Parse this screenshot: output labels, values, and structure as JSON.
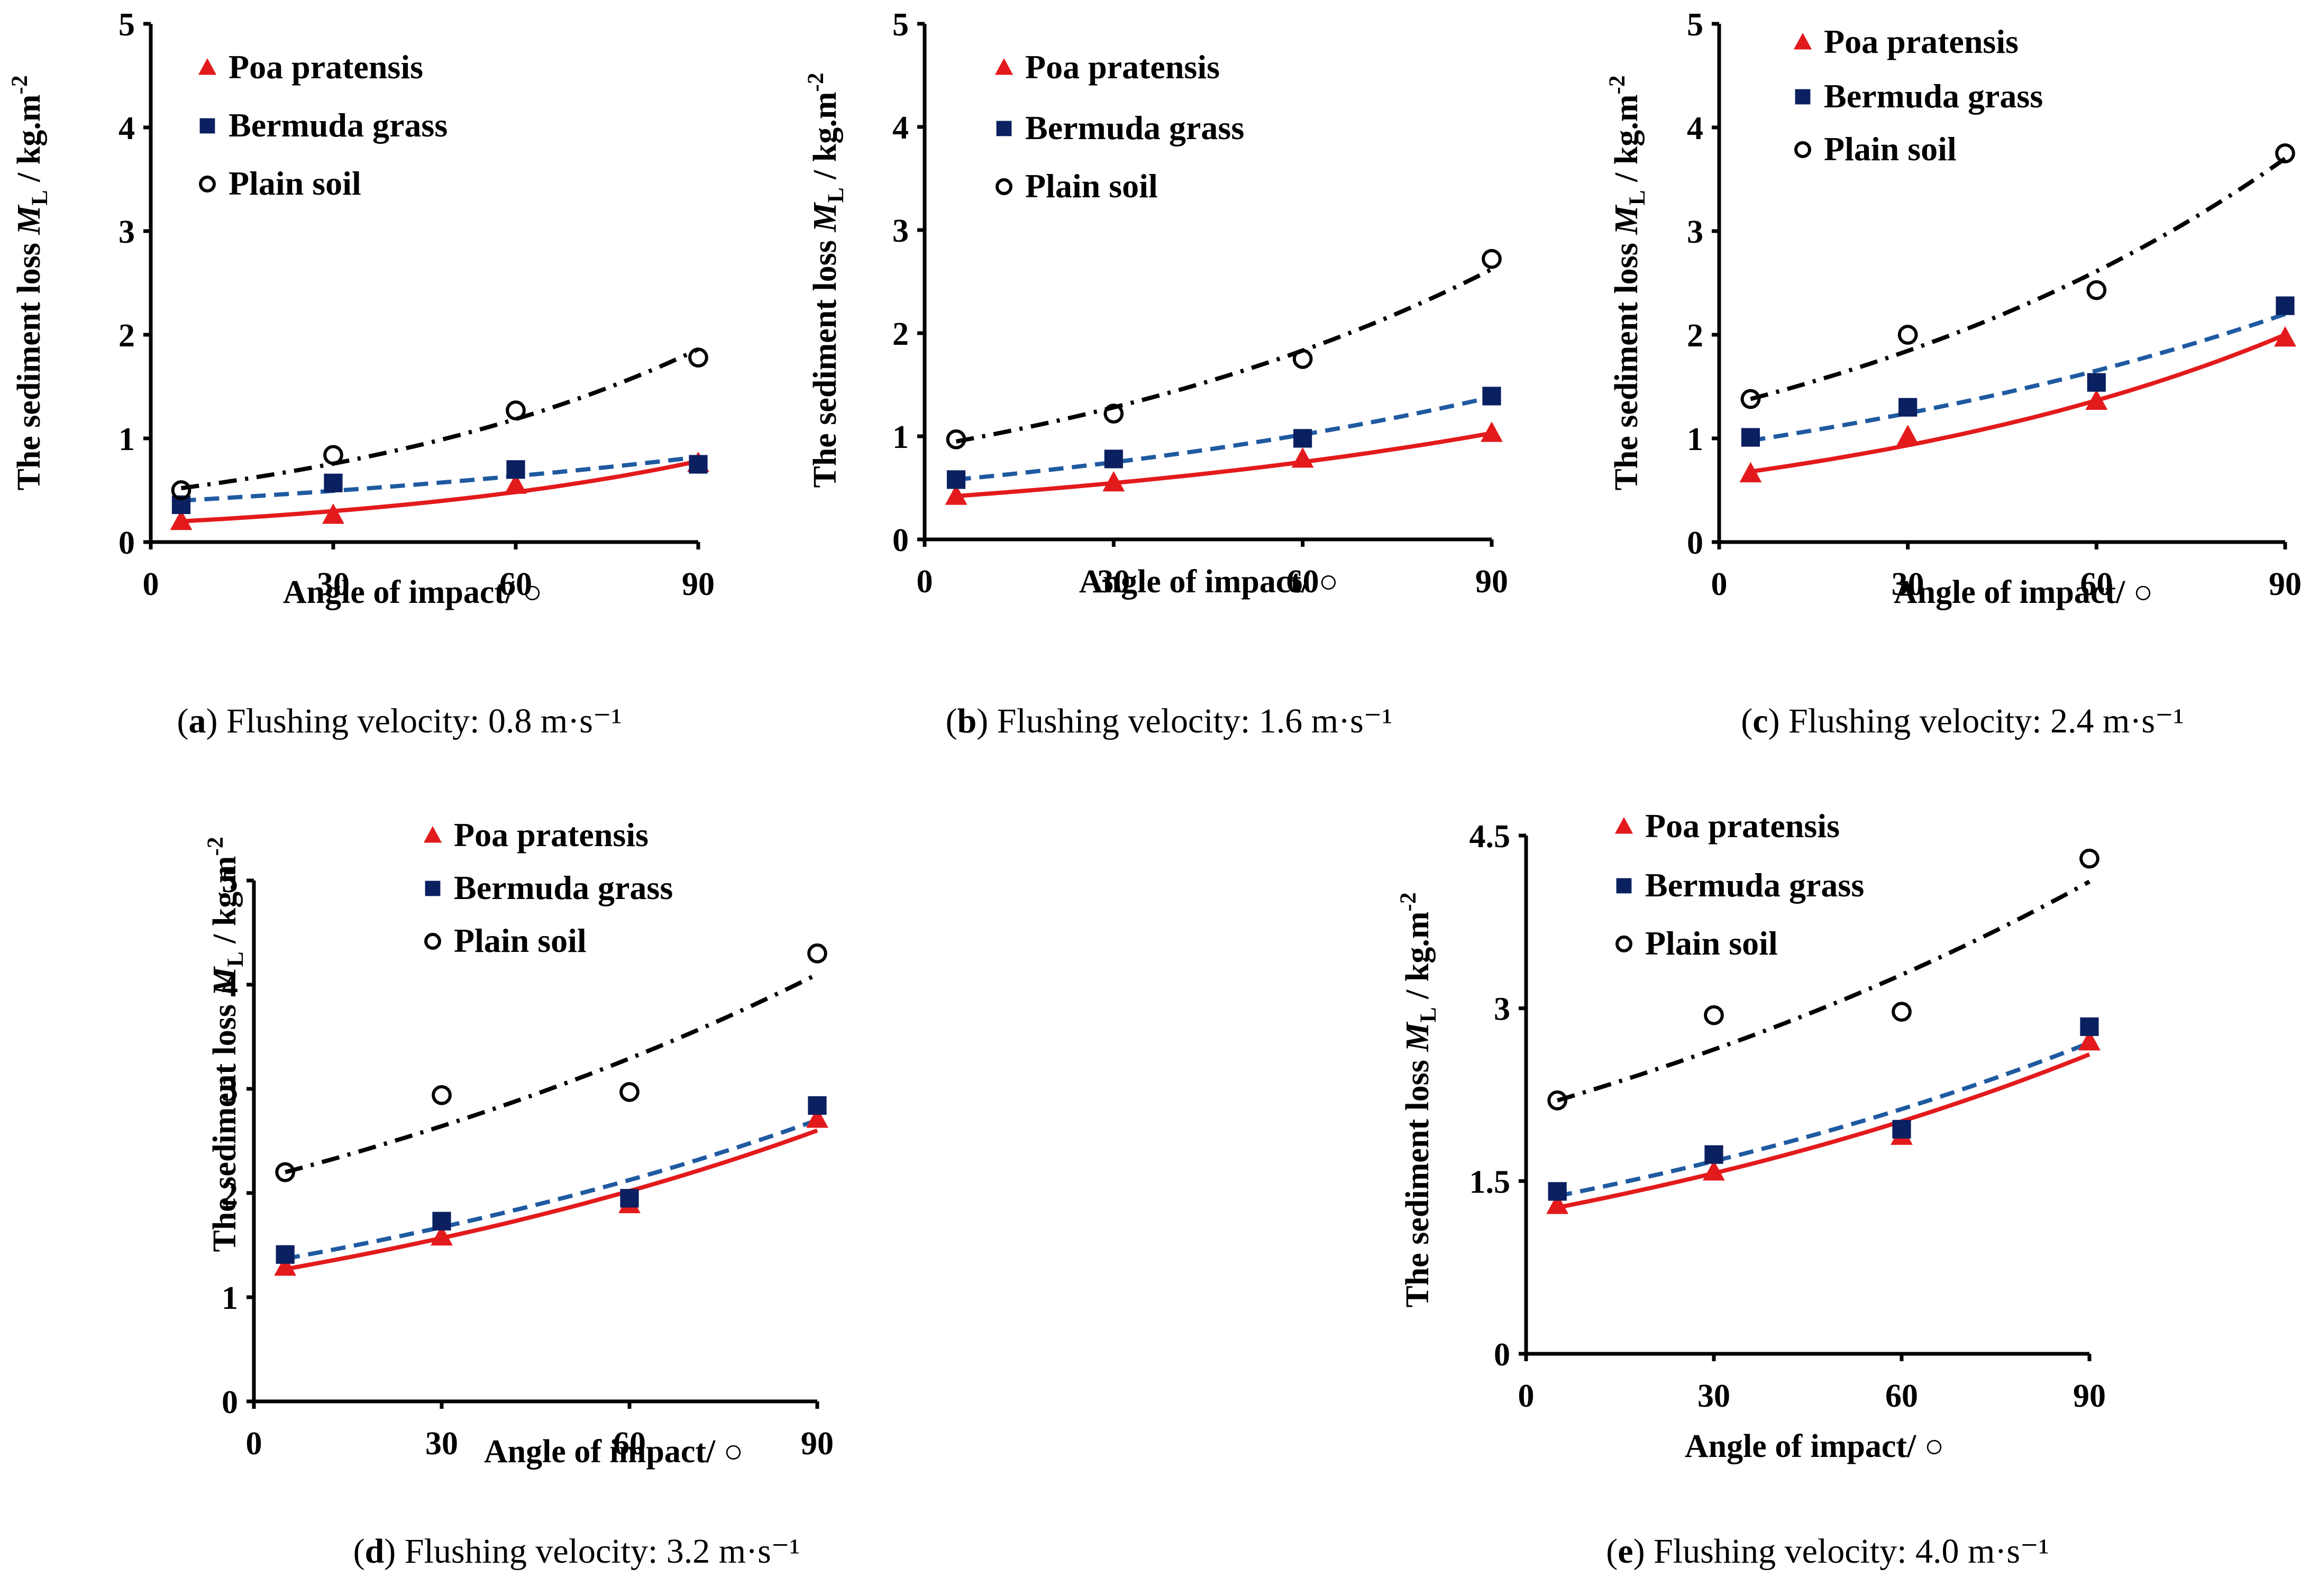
{
  "figure": {
    "axis_label_x": "Angle of impact/ ○",
    "y_label_main": "The sediment loss ",
    "y_label_symbol": "M",
    "y_label_subscript": "L",
    "y_label_unit": " / kg.m",
    "y_label_superscript": "-2"
  },
  "colors": {
    "poa": "#e31a1c",
    "bermuda": "#0b2060",
    "plain": "#000000",
    "bermuda_fit": "#1f5aa0"
  },
  "chart_data": [
    {
      "type": "scatter",
      "panel_label": "a",
      "caption": "Flushing velocity: 0.8 m·s⁻¹",
      "xlabel": "Angle of impact/ ○",
      "ylabel": "The sediment loss ML / kg.m-2",
      "xlim": [
        0,
        90
      ],
      "ylim": [
        0,
        5
      ],
      "xticks": [
        0,
        30,
        60,
        90
      ],
      "yticks": [
        0,
        1,
        2,
        3,
        4,
        5
      ],
      "x": [
        5,
        30,
        60,
        90
      ],
      "legend": [
        "Poa pratensis",
        "Bermuda grass",
        "Plain soil"
      ],
      "series": [
        {
          "name": "Poa pratensis",
          "marker": "triangle",
          "fit": "solid",
          "values": [
            0.2,
            0.26,
            0.55,
            0.76
          ],
          "fit_ends": [
            0.2,
            0.78
          ]
        },
        {
          "name": "Bermuda grass",
          "marker": "square",
          "fit": "dashed",
          "values": [
            0.36,
            0.57,
            0.7,
            0.75
          ],
          "fit_ends": [
            0.4,
            0.82
          ]
        },
        {
          "name": "Plain soil",
          "marker": "circle",
          "fit": "dashdot",
          "values": [
            0.5,
            0.84,
            1.27,
            1.78
          ],
          "fit_ends": [
            0.52,
            1.86
          ]
        }
      ]
    },
    {
      "type": "scatter",
      "panel_label": "b",
      "caption": "Flushing velocity: 1.6 m·s⁻¹",
      "xlabel": "Angle of impact/ ○",
      "ylabel": "The sediment loss ML / kg.m-2",
      "xlim": [
        0,
        90
      ],
      "ylim": [
        0,
        5
      ],
      "xticks": [
        0,
        30,
        60,
        90
      ],
      "yticks": [
        0,
        1,
        2,
        3,
        4,
        5
      ],
      "x": [
        5,
        30,
        60,
        90
      ],
      "legend": [
        "Poa pratensis",
        "Bermuda grass",
        "Plain soil"
      ],
      "series": [
        {
          "name": "Poa pratensis",
          "marker": "triangle",
          "fit": "solid",
          "values": [
            0.42,
            0.55,
            0.78,
            1.03
          ],
          "fit_ends": [
            0.42,
            1.03
          ]
        },
        {
          "name": "Bermuda grass",
          "marker": "square",
          "fit": "dashed",
          "values": [
            0.58,
            0.78,
            0.98,
            1.39
          ],
          "fit_ends": [
            0.58,
            1.38
          ]
        },
        {
          "name": "Plain soil",
          "marker": "circle",
          "fit": "dashdot",
          "values": [
            0.97,
            1.22,
            1.75,
            2.72
          ],
          "fit_ends": [
            0.95,
            2.62
          ]
        }
      ]
    },
    {
      "type": "scatter",
      "panel_label": "c",
      "caption": "Flushing velocity: 2.4 m·s⁻¹",
      "xlabel": "Angle of impact/ ○",
      "ylabel": "The sediment loss ML / kg.m-2",
      "xlim": [
        0,
        90
      ],
      "ylim": [
        0,
        5
      ],
      "xticks": [
        0,
        30,
        60,
        90
      ],
      "yticks": [
        0,
        1,
        2,
        3,
        4,
        5
      ],
      "x": [
        5,
        30,
        60,
        90
      ],
      "legend": [
        "Poa pratensis",
        "Bermuda grass",
        "Plain soil"
      ],
      "series": [
        {
          "name": "Poa pratensis",
          "marker": "triangle",
          "fit": "solid",
          "values": [
            0.66,
            1.02,
            1.36,
            1.97
          ],
          "fit_ends": [
            0.68,
            2.0
          ]
        },
        {
          "name": "Bermuda grass",
          "marker": "square",
          "fit": "dashed",
          "values": [
            1.01,
            1.3,
            1.54,
            2.28
          ],
          "fit_ends": [
            0.98,
            2.2
          ]
        },
        {
          "name": "Plain soil",
          "marker": "circle",
          "fit": "dashdot",
          "values": [
            1.38,
            2.0,
            2.43,
            3.75
          ],
          "fit_ends": [
            1.38,
            3.7
          ]
        }
      ]
    },
    {
      "type": "scatter",
      "panel_label": "d",
      "caption": "Flushing velocity: 3.2 m·s⁻¹",
      "xlabel": "Angle of impact/ ○",
      "ylabel": "The sediment loss ML / kg.m-2",
      "xlim": [
        0,
        90
      ],
      "ylim": [
        0,
        5
      ],
      "xticks": [
        0,
        30,
        60,
        90
      ],
      "yticks": [
        0,
        1,
        2,
        3,
        4,
        5
      ],
      "x": [
        5,
        30,
        60,
        90
      ],
      "legend": [
        "Poa pratensis",
        "Bermuda grass",
        "Plain soil"
      ],
      "series": [
        {
          "name": "Poa pratensis",
          "marker": "triangle",
          "fit": "solid",
          "values": [
            1.29,
            1.58,
            1.89,
            2.71
          ],
          "fit_ends": [
            1.27,
            2.6
          ]
        },
        {
          "name": "Bermuda grass",
          "marker": "square",
          "fit": "dashed",
          "values": [
            1.41,
            1.73,
            1.95,
            2.84
          ],
          "fit_ends": [
            1.37,
            2.7
          ]
        },
        {
          "name": "Plain soil",
          "marker": "circle",
          "fit": "dashdot",
          "values": [
            2.2,
            2.94,
            2.97,
            4.3
          ],
          "fit_ends": [
            2.2,
            4.1
          ]
        }
      ]
    },
    {
      "type": "scatter",
      "panel_label": "e",
      "caption": "Flushing velocity: 4.0 m·s⁻¹",
      "xlabel": "Angle of impact/ ○",
      "ylabel": "The sediment loss ML / kg.m-2",
      "xlim": [
        0,
        90
      ],
      "ylim": [
        0,
        4.5
      ],
      "xticks": [
        0,
        30,
        60,
        90
      ],
      "yticks": [
        0,
        1.5,
        3,
        4.5
      ],
      "x": [
        5,
        30,
        60,
        90
      ],
      "legend": [
        "Poa pratensis",
        "Bermuda grass",
        "Plain soil"
      ],
      "series": [
        {
          "name": "Poa pratensis",
          "marker": "triangle",
          "fit": "solid",
          "values": [
            1.29,
            1.58,
            1.89,
            2.71
          ],
          "fit_ends": [
            1.27,
            2.6
          ]
        },
        {
          "name": "Bermuda grass",
          "marker": "square",
          "fit": "dashed",
          "values": [
            1.41,
            1.73,
            1.95,
            2.84
          ],
          "fit_ends": [
            1.37,
            2.7
          ]
        },
        {
          "name": "Plain soil",
          "marker": "circle",
          "fit": "dashdot",
          "values": [
            2.2,
            2.94,
            2.97,
            4.3
          ],
          "fit_ends": [
            2.2,
            4.1
          ]
        }
      ]
    }
  ]
}
